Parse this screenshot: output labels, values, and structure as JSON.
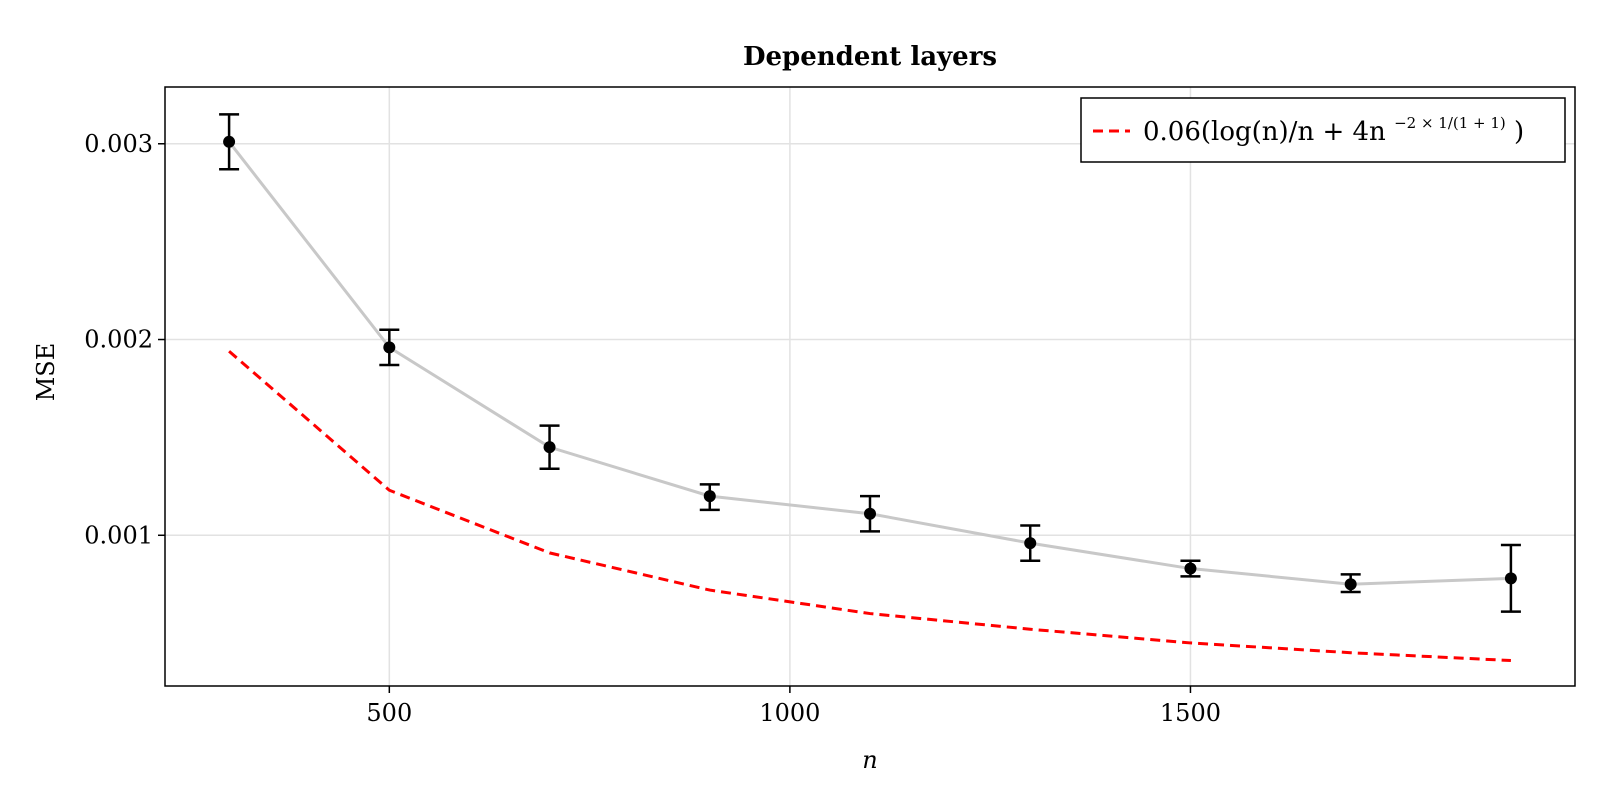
{
  "chart_data": {
    "type": "line",
    "title": "Dependent layers",
    "xlabel": "n",
    "ylabel": "MSE",
    "xlim": [
      220,
      1980
    ],
    "ylim": [
      0.00023,
      0.00329
    ],
    "xticks": [
      500,
      1000,
      1500
    ],
    "xtick_labels": [
      "500",
      "1000",
      "1500"
    ],
    "yticks": [
      0.001,
      0.002,
      0.003
    ],
    "ytick_labels": [
      "0.001",
      "0.002",
      "0.003"
    ],
    "grid": true,
    "legend_position": "top-right",
    "legend": {
      "label_main": "0.06(log(n)/n + 4n",
      "label_sup": "−2 × 1/(1 + 1)",
      "label_tail": ")"
    },
    "series": [
      {
        "kind": "line-errorbar",
        "x": [
          300,
          500,
          700,
          900,
          1100,
          1300,
          1500,
          1700,
          1900
        ],
        "y": [
          0.00301,
          0.00196,
          0.00145,
          0.0012,
          0.00111,
          0.00096,
          0.00083,
          0.00075,
          0.00078
        ],
        "yerr_low": [
          0.00287,
          0.00187,
          0.00134,
          0.00113,
          0.00102,
          0.00087,
          0.00079,
          0.00071,
          0.00061
        ],
        "yerr_high": [
          0.00315,
          0.00205,
          0.00156,
          0.00126,
          0.0012,
          0.00105,
          0.00087,
          0.0008,
          0.00095
        ],
        "line_color": "#c8c8c8",
        "marker_color": "#000000"
      },
      {
        "kind": "dashed-line",
        "x": [
          300,
          500,
          700,
          900,
          1100,
          1300,
          1500,
          1700,
          1900
        ],
        "y": [
          0.00194,
          0.00123,
          0.00091,
          0.00072,
          0.0006,
          0.00052,
          0.00045,
          0.0004,
          0.00036
        ],
        "color": "#ff0000"
      }
    ]
  }
}
